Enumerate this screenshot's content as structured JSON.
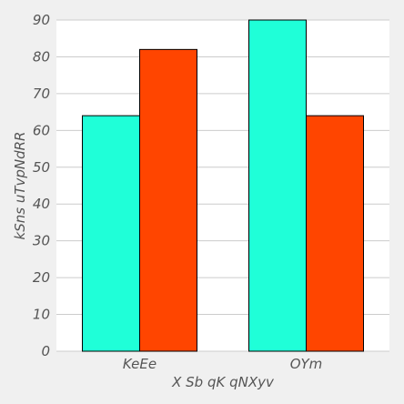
{
  "chart_data": {
    "type": "bar",
    "title": "",
    "xlabel": "X Sb qK qNXyv",
    "ylabel": "kSns uTvpNdRR",
    "categories": [
      "KeEe",
      "OYm"
    ],
    "series": [
      {
        "values": [
          64,
          90
        ],
        "color": "#1fffd8"
      },
      {
        "values": [
          82,
          64
        ],
        "color": "#ff4500"
      }
    ],
    "ylim": [
      0,
      90
    ],
    "yticks": [
      0,
      10,
      20,
      30,
      40,
      50,
      60,
      70,
      80,
      90
    ],
    "grid": true
  },
  "style": {
    "background": "#f0f0f0",
    "plot_background": "#ffffff",
    "grid_color": "#cccccc",
    "bar_edge_color": "#000000",
    "text_color": "#555555"
  }
}
